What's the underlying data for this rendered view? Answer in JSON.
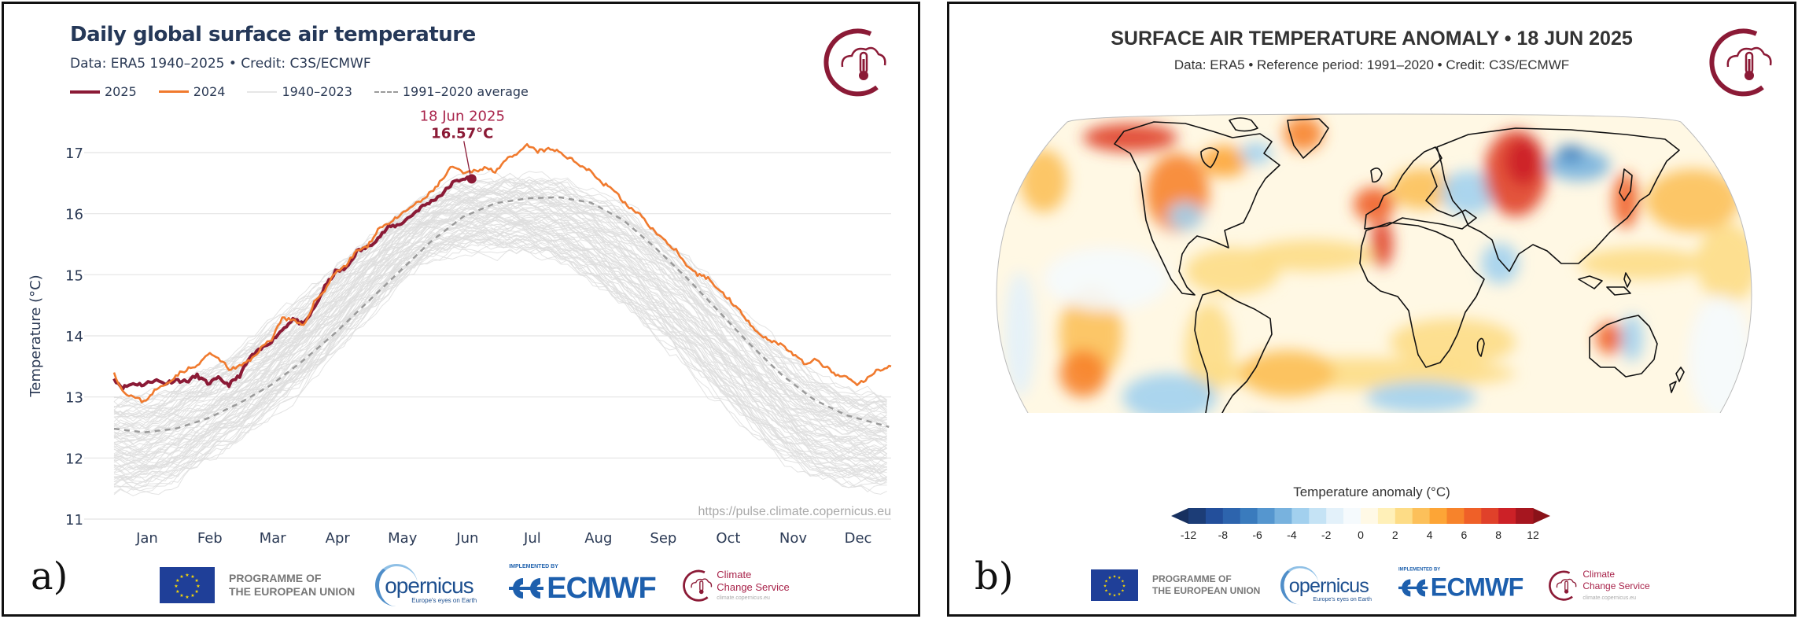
{
  "panel_a": {
    "label": "a)",
    "title": "Daily global surface air temperature",
    "subtitle": "Data: ERA5 1940–2025  •  Credit: C3S/ECMWF",
    "legend": [
      {
        "label": "2025",
        "color": "#8b1a36",
        "style": "solid-thick"
      },
      {
        "label": "2024",
        "color": "#f07a2e",
        "style": "solid"
      },
      {
        "label": "1940–2023",
        "color": "#e2e2e2",
        "style": "solid"
      },
      {
        "label": "1991–2020 average",
        "color": "#9a9a9a",
        "style": "dashed"
      }
    ],
    "annotation": {
      "date": "18 Jun 2025",
      "value": "16.57°C"
    },
    "source_url": "https://pulse.climate.copernicus.eu",
    "footer": {
      "eu_text_1": "PROGRAMME OF",
      "eu_text_2": "THE EUROPEAN UNION",
      "copernicus": "opernicus",
      "copernicus_tag": "Europe's eyes on Earth",
      "ecmwf_impl": "IMPLEMENTED BY",
      "ecmwf": "ECMWF",
      "ccs_1": "Climate",
      "ccs_2": "Change Service",
      "ccs_url": "climate.copernicus.eu"
    }
  },
  "chart_data": {
    "type": "line",
    "title": "Daily global surface air temperature",
    "xlabel": "",
    "ylabel": "Temperature (°C)",
    "ylim": [
      11,
      17
    ],
    "yticks": [
      11,
      12,
      13,
      14,
      15,
      16,
      17
    ],
    "xticks": [
      "Jan",
      "Feb",
      "Mar",
      "Apr",
      "May",
      "Jun",
      "Jul",
      "Aug",
      "Sep",
      "Oct",
      "Nov",
      "Dec"
    ],
    "x_unit": "day of year",
    "xlim": [
      1,
      366
    ],
    "grid": true,
    "legend_position": "top-left",
    "series": [
      {
        "name": "2025",
        "color": "#8b1a36",
        "x": [
          1,
          5,
          10,
          15,
          20,
          25,
          30,
          35,
          40,
          45,
          50,
          55,
          60,
          65,
          70,
          75,
          80,
          85,
          90,
          95,
          100,
          105,
          110,
          115,
          120,
          125,
          130,
          135,
          140,
          145,
          150,
          155,
          160,
          165,
          169
        ],
        "y": [
          13.3,
          13.15,
          13.22,
          13.2,
          13.28,
          13.22,
          13.28,
          13.25,
          13.35,
          13.22,
          13.3,
          13.2,
          13.35,
          13.65,
          13.78,
          13.92,
          14.1,
          14.28,
          14.18,
          14.45,
          14.8,
          15.05,
          15.1,
          15.38,
          15.45,
          15.6,
          15.78,
          15.82,
          15.95,
          16.1,
          16.2,
          16.32,
          16.5,
          16.58,
          16.57
        ]
      },
      {
        "name": "2024",
        "color": "#f07a2e",
        "x": [
          1,
          5,
          10,
          15,
          20,
          25,
          30,
          35,
          40,
          45,
          50,
          55,
          60,
          65,
          70,
          75,
          80,
          85,
          90,
          95,
          100,
          105,
          110,
          115,
          120,
          125,
          130,
          135,
          140,
          145,
          150,
          155,
          160,
          165,
          170,
          175,
          180,
          185,
          190,
          195,
          200,
          205,
          210,
          215,
          220,
          225,
          230,
          235,
          240,
          245,
          250,
          255,
          260,
          265,
          270,
          275,
          280,
          285,
          290,
          295,
          300,
          305,
          310,
          315,
          320,
          325,
          330,
          335,
          340,
          345,
          350,
          355,
          360,
          366
        ],
        "y": [
          13.4,
          13.1,
          13.0,
          12.92,
          13.1,
          13.2,
          13.35,
          13.45,
          13.5,
          13.7,
          13.65,
          13.45,
          13.5,
          13.6,
          13.8,
          13.95,
          14.3,
          14.25,
          14.15,
          14.55,
          14.75,
          15.05,
          15.15,
          15.4,
          15.45,
          15.75,
          15.85,
          15.95,
          16.1,
          16.2,
          16.35,
          16.55,
          16.78,
          16.65,
          16.7,
          16.75,
          16.7,
          16.88,
          16.95,
          17.12,
          17.02,
          17.05,
          17.02,
          16.9,
          16.8,
          16.7,
          16.5,
          16.42,
          16.2,
          16.05,
          15.92,
          15.7,
          15.55,
          15.4,
          15.12,
          15.0,
          14.95,
          14.75,
          14.6,
          14.4,
          14.2,
          14.0,
          13.92,
          13.85,
          13.7,
          13.55,
          13.6,
          13.5,
          13.35,
          13.32,
          13.2,
          13.3,
          13.45,
          13.5
        ]
      },
      {
        "name": "1991–2020 average",
        "color": "#9a9a9a",
        "style": "dashed",
        "x": [
          1,
          15,
          30,
          45,
          60,
          75,
          90,
          105,
          120,
          135,
          150,
          165,
          180,
          195,
          210,
          225,
          240,
          255,
          270,
          285,
          300,
          315,
          330,
          345,
          366
        ],
        "y": [
          12.48,
          12.42,
          12.48,
          12.65,
          12.9,
          13.2,
          13.6,
          14.05,
          14.55,
          15.05,
          15.55,
          15.95,
          16.17,
          16.25,
          16.27,
          16.18,
          15.9,
          15.45,
          14.95,
          14.4,
          13.85,
          13.35,
          12.95,
          12.7,
          12.5
        ]
      },
      {
        "name": "1940–2023",
        "color": "#e2e2e2",
        "band_low": [
          11.35,
          11.3,
          11.55,
          11.85,
          12.2,
          12.6,
          13.1,
          13.65,
          14.2,
          14.8,
          15.2,
          15.35,
          15.35,
          15.3,
          15.15,
          14.85,
          14.4,
          13.9,
          13.4,
          12.85,
          12.35,
          11.9,
          11.6,
          11.45,
          11.4
        ],
        "band_high": [
          13.1,
          13.1,
          13.3,
          13.55,
          13.9,
          14.3,
          14.7,
          15.2,
          15.7,
          16.1,
          16.4,
          16.6,
          16.65,
          16.7,
          16.6,
          16.45,
          16.2,
          15.85,
          15.4,
          14.9,
          14.35,
          13.85,
          13.45,
          13.2,
          13.1
        ],
        "band_x": [
          1,
          15,
          30,
          45,
          60,
          75,
          90,
          105,
          120,
          135,
          150,
          165,
          180,
          195,
          210,
          225,
          240,
          255,
          270,
          285,
          300,
          315,
          330,
          345,
          366
        ],
        "n_years": 84
      }
    ],
    "annotations": [
      {
        "x": 169,
        "y": 16.57,
        "text": [
          "18 Jun 2025",
          "16.57°C"
        ]
      }
    ]
  },
  "panel_b": {
    "label": "b)",
    "title": "SURFACE AIR TEMPERATURE ANOMALY • 18 JUN 2025",
    "subtitle": "Data: ERA5 • Reference period: 1991–2020 • Credit: C3S/ECMWF",
    "colorbar": {
      "title": "Temperature anomaly (°C)",
      "ticks": [
        "-12",
        "-8",
        "-6",
        "-4",
        "-2",
        "0",
        "2",
        "4",
        "6",
        "8",
        "12"
      ],
      "colors": [
        "#1c3d77",
        "#234f9b",
        "#2d64ad",
        "#3a7bbd",
        "#5596cf",
        "#78b2de",
        "#a2d0ee",
        "#c5e3f5",
        "#e3f1fa",
        "#f5fafd",
        "#fff9e6",
        "#fff0b8",
        "#fddc86",
        "#fcc05a",
        "#fda536",
        "#f7832b",
        "#ef6028",
        "#e0412a",
        "#cc2127",
        "#a6161f"
      ],
      "under_color": "#17305f",
      "over_color": "#8a1219"
    },
    "map_description": "Global surface air temperature anomaly map (Robinson projection)"
  }
}
